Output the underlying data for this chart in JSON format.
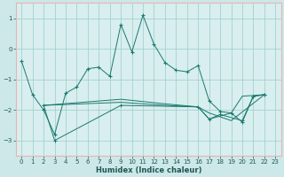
{
  "xlabel": "Humidex (Indice chaleur)",
  "bg_color": "#cce8e8",
  "plot_bg_color": "#d9eeee",
  "grid_color": "#99cccc",
  "border_color": "#e8b4b4",
  "line_color": "#1a7a6e",
  "xlim": [
    -0.5,
    23.5
  ],
  "ylim": [
    -3.5,
    1.5
  ],
  "yticks": [
    -3,
    -2,
    -1,
    0,
    1
  ],
  "xticks": [
    0,
    1,
    2,
    3,
    4,
    5,
    6,
    7,
    8,
    9,
    10,
    11,
    12,
    13,
    14,
    15,
    16,
    17,
    18,
    19,
    20,
    21,
    22,
    23
  ],
  "series1_x": [
    0,
    1,
    2,
    3,
    4,
    5,
    6,
    7,
    8,
    9,
    10,
    11,
    12,
    13,
    14,
    15,
    16,
    17,
    18,
    19,
    20,
    21,
    22
  ],
  "series1_y": [
    -0.4,
    -1.5,
    -2.0,
    -2.8,
    -1.45,
    -1.25,
    -0.65,
    -0.6,
    -0.9,
    0.8,
    -0.1,
    1.1,
    0.15,
    -0.45,
    -0.7,
    -0.75,
    -0.55,
    -1.7,
    -2.05,
    -2.1,
    -2.4,
    -1.55,
    -1.5
  ],
  "series2_x": [
    2,
    3,
    9,
    16,
    17,
    18,
    20,
    21,
    22
  ],
  "series2_y": [
    -1.85,
    -3.0,
    -1.85,
    -1.9,
    -2.3,
    -2.15,
    -2.35,
    -1.55,
    -1.5
  ],
  "series3_x": [
    2,
    9,
    13,
    16,
    17,
    19,
    20,
    22
  ],
  "series3_y": [
    -1.85,
    -1.75,
    -1.85,
    -1.9,
    -2.3,
    -2.1,
    -1.55,
    -1.5
  ],
  "series4_x": [
    2,
    9,
    13,
    16,
    17,
    19,
    22
  ],
  "series4_y": [
    -1.85,
    -1.65,
    -1.8,
    -1.9,
    -2.1,
    -2.35,
    -1.5
  ]
}
